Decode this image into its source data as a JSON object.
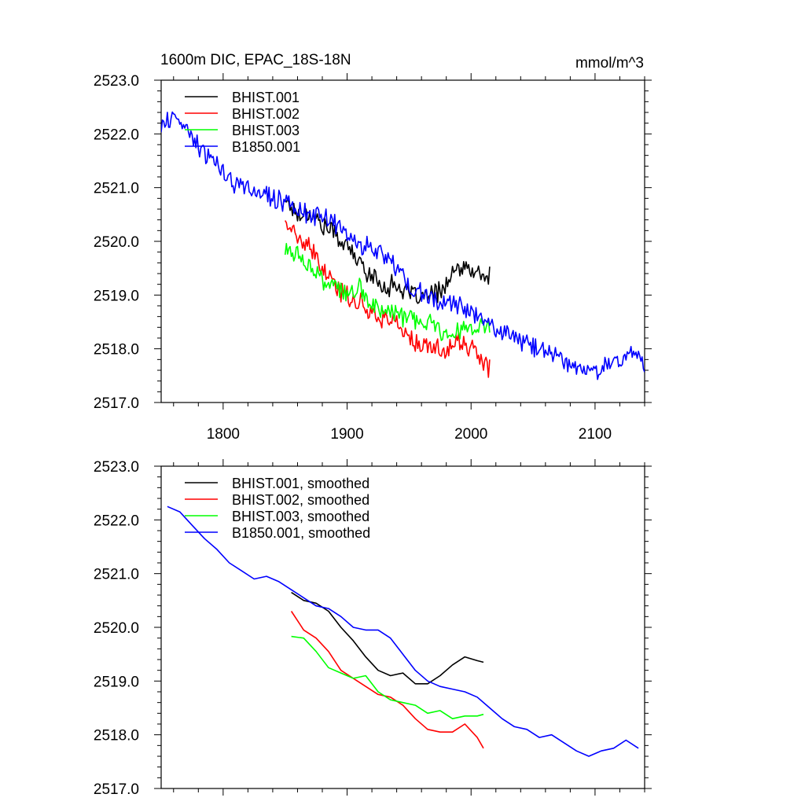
{
  "page": {
    "title": "1600m DIC, EPAC_18S-18N",
    "units": "mmol/m^3"
  },
  "chart_data": [
    {
      "type": "line",
      "panel": "top",
      "title": "1600m DIC, EPAC_18S-18N",
      "units_label": "mmol/m^3",
      "xlim": [
        1750,
        2140
      ],
      "ylim": [
        2517.0,
        2523.0
      ],
      "xticks": [
        1800,
        1900,
        2000,
        2100
      ],
      "xtick_labels": [
        "1800",
        "1900",
        "2000",
        "2100"
      ],
      "yticks": [
        2517.0,
        2518.0,
        2519.0,
        2520.0,
        2521.0,
        2522.0,
        2523.0
      ],
      "ytick_labels": [
        "2517.0",
        "2518.0",
        "2519.0",
        "2520.0",
        "2521.0",
        "2522.0",
        "2523.0"
      ],
      "legend_position": "top-left",
      "series": [
        {
          "name": "BHIST.001",
          "color": "#000000",
          "x": [
            1850,
            1860,
            1870,
            1880,
            1890,
            1900,
            1910,
            1920,
            1930,
            1940,
            1950,
            1960,
            1970,
            1980,
            1990,
            2000,
            2010,
            2015
          ],
          "y": [
            2520.8,
            2520.5,
            2520.55,
            2520.3,
            2520.15,
            2519.9,
            2519.6,
            2519.35,
            2519.15,
            2519.2,
            2519.0,
            2518.95,
            2519.0,
            2519.2,
            2519.5,
            2519.45,
            2519.35,
            2519.35
          ]
        },
        {
          "name": "BHIST.002",
          "color": "#ff0000",
          "x": [
            1850,
            1860,
            1870,
            1880,
            1890,
            1900,
            1910,
            1920,
            1930,
            1940,
            1950,
            1960,
            1970,
            1980,
            1990,
            2000,
            2010,
            2015
          ],
          "y": [
            2520.4,
            2520.05,
            2519.85,
            2519.5,
            2519.15,
            2519.0,
            2518.85,
            2518.7,
            2518.55,
            2518.5,
            2518.2,
            2518.0,
            2518.05,
            2517.95,
            2518.15,
            2518.0,
            2517.75,
            2517.6
          ]
        },
        {
          "name": "BHIST.003",
          "color": "#00ff00",
          "x": [
            1850,
            1860,
            1870,
            1880,
            1890,
            1900,
            1910,
            1920,
            1930,
            1940,
            1950,
            1960,
            1970,
            1980,
            1990,
            2000,
            2010,
            2015
          ],
          "y": [
            2519.85,
            2519.75,
            2519.55,
            2519.25,
            2519.15,
            2519.0,
            2519.1,
            2518.85,
            2518.7,
            2518.65,
            2518.55,
            2518.45,
            2518.45,
            2518.3,
            2518.35,
            2518.4,
            2518.4,
            2518.4
          ]
        },
        {
          "name": "B1850.001",
          "color": "#0000ff",
          "x": [
            1750,
            1760,
            1770,
            1780,
            1790,
            1800,
            1810,
            1820,
            1830,
            1840,
            1850,
            1860,
            1870,
            1880,
            1890,
            1900,
            1910,
            1920,
            1930,
            1940,
            1950,
            1960,
            1970,
            1980,
            1990,
            2000,
            2010,
            2020,
            2030,
            2040,
            2050,
            2060,
            2070,
            2080,
            2090,
            2100,
            2110,
            2120,
            2130,
            2140
          ],
          "y": [
            2522.1,
            2522.3,
            2522.1,
            2521.8,
            2521.5,
            2521.3,
            2521.05,
            2521.0,
            2520.9,
            2520.8,
            2520.75,
            2520.6,
            2520.45,
            2520.5,
            2520.35,
            2520.1,
            2519.95,
            2519.85,
            2519.75,
            2519.5,
            2519.2,
            2519.0,
            2518.9,
            2518.85,
            2518.8,
            2518.7,
            2518.55,
            2518.35,
            2518.25,
            2518.15,
            2518.05,
            2517.95,
            2517.85,
            2517.7,
            2517.6,
            2517.6,
            2517.75,
            2517.8,
            2517.95,
            2517.7
          ]
        }
      ]
    },
    {
      "type": "line",
      "panel": "bottom",
      "xlim": [
        1750,
        2140
      ],
      "ylim": [
        2517.0,
        2523.0
      ],
      "xticks": [
        1800,
        1900,
        2000,
        2100
      ],
      "yticks": [
        2517.0,
        2518.0,
        2519.0,
        2520.0,
        2521.0,
        2522.0,
        2523.0
      ],
      "ytick_labels": [
        "2517.0",
        "2518.0",
        "2519.0",
        "2520.0",
        "2521.0",
        "2522.0",
        "2523.0"
      ],
      "legend_position": "top-left",
      "series": [
        {
          "name": "BHIST.001, smoothed",
          "color": "#000000",
          "x": [
            1855,
            1865,
            1875,
            1885,
            1895,
            1905,
            1915,
            1925,
            1935,
            1945,
            1955,
            1965,
            1975,
            1985,
            1995,
            2005,
            2010
          ],
          "y": [
            2520.65,
            2520.5,
            2520.45,
            2520.3,
            2520.0,
            2519.75,
            2519.45,
            2519.2,
            2519.1,
            2519.15,
            2518.95,
            2518.95,
            2519.1,
            2519.3,
            2519.45,
            2519.38,
            2519.35
          ]
        },
        {
          "name": "BHIST.002, smoothed",
          "color": "#ff0000",
          "x": [
            1855,
            1865,
            1875,
            1885,
            1895,
            1905,
            1915,
            1925,
            1935,
            1945,
            1955,
            1965,
            1975,
            1985,
            1995,
            2005,
            2010
          ],
          "y": [
            2520.3,
            2519.95,
            2519.8,
            2519.55,
            2519.2,
            2519.05,
            2518.9,
            2518.75,
            2518.7,
            2518.55,
            2518.3,
            2518.1,
            2518.05,
            2518.05,
            2518.2,
            2517.95,
            2517.75
          ]
        },
        {
          "name": "BHIST.003, smoothed",
          "color": "#00ff00",
          "x": [
            1855,
            1865,
            1875,
            1885,
            1895,
            1905,
            1915,
            1925,
            1935,
            1945,
            1955,
            1965,
            1975,
            1985,
            1995,
            2005,
            2010
          ],
          "y": [
            2519.83,
            2519.8,
            2519.55,
            2519.25,
            2519.15,
            2519.05,
            2519.1,
            2518.8,
            2518.65,
            2518.6,
            2518.55,
            2518.4,
            2518.45,
            2518.3,
            2518.35,
            2518.35,
            2518.38
          ]
        },
        {
          "name": "B1850.001, smoothed",
          "color": "#0000ff",
          "x": [
            1755,
            1765,
            1775,
            1785,
            1795,
            1805,
            1815,
            1825,
            1835,
            1845,
            1855,
            1865,
            1875,
            1885,
            1895,
            1905,
            1915,
            1925,
            1935,
            1945,
            1955,
            1965,
            1975,
            1985,
            1995,
            2005,
            2015,
            2025,
            2035,
            2045,
            2055,
            2065,
            2075,
            2085,
            2095,
            2105,
            2115,
            2125,
            2135
          ],
          "y": [
            2522.25,
            2522.15,
            2521.9,
            2521.65,
            2521.45,
            2521.2,
            2521.05,
            2520.9,
            2520.95,
            2520.85,
            2520.7,
            2520.55,
            2520.4,
            2520.35,
            2520.2,
            2520.0,
            2519.95,
            2519.95,
            2519.8,
            2519.5,
            2519.2,
            2519.0,
            2518.9,
            2518.85,
            2518.8,
            2518.7,
            2518.5,
            2518.3,
            2518.15,
            2518.1,
            2517.95,
            2518.0,
            2517.85,
            2517.7,
            2517.6,
            2517.7,
            2517.75,
            2517.9,
            2517.75
          ]
        }
      ]
    }
  ]
}
